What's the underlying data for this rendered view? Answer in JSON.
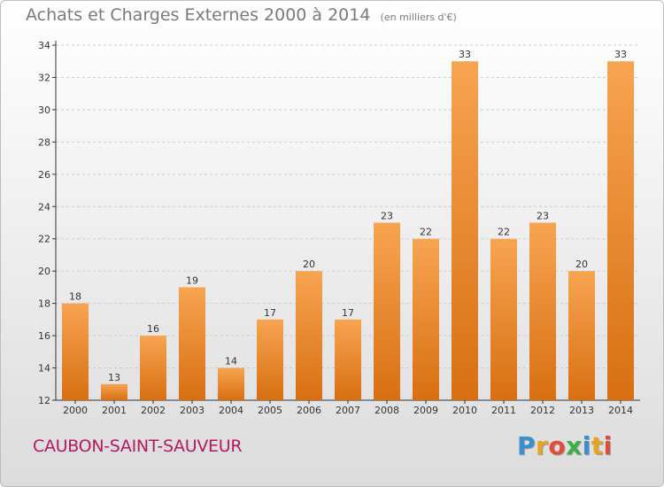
{
  "title": "Achats et Charges Externes 2000 à 2014",
  "subtitle": "(en milliers d'€)",
  "town": "CAUBON-SAINT-SAUVEUR",
  "brand": {
    "letters": [
      "P",
      "r",
      "o",
      "x",
      "i",
      "t",
      "i"
    ],
    "colors": [
      "#3a8fd0",
      "#e8a420",
      "#e34b3a",
      "#3fae49",
      "#3a8fd0",
      "#e8a420",
      "#e34b3a"
    ]
  },
  "colors": {
    "bar_top": "#f7a451",
    "bar_bottom": "#d86f12",
    "axis": "#333333",
    "grid": "#cccccc"
  },
  "chart_data": {
    "type": "bar",
    "categories": [
      "2000",
      "2001",
      "2002",
      "2003",
      "2004",
      "2005",
      "2006",
      "2007",
      "2008",
      "2009",
      "2010",
      "2011",
      "2012",
      "2013",
      "2014"
    ],
    "values": [
      18,
      13,
      16,
      19,
      14,
      17,
      20,
      17,
      23,
      22,
      33,
      22,
      23,
      20,
      33
    ],
    "ylim": [
      12,
      34
    ],
    "yticks": [
      12,
      14,
      16,
      18,
      20,
      22,
      24,
      26,
      28,
      30,
      32,
      34
    ],
    "grid": true,
    "data_labels": true
  }
}
